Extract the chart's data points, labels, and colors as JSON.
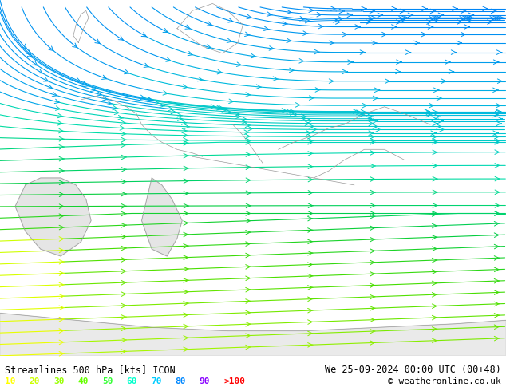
{
  "title_left": "Streamlines 500 hPa [kts] ICON",
  "title_right": "We 25-09-2024 00:00 UTC (00+48)",
  "copyright": "© weatheronline.co.uk",
  "legend_values": [
    "10",
    "20",
    "30",
    "40",
    "50",
    "60",
    "70",
    "80",
    "90",
    ">100"
  ],
  "legend_colors": [
    "#ffff00",
    "#ccff00",
    "#99ff00",
    "#66ff00",
    "#33ff33",
    "#00ffcc",
    "#00ccff",
    "#0088ff",
    "#8800ff",
    "#ff0000"
  ],
  "bg_color": "#ccff99",
  "bottom_bar_color": "#d8d8d8",
  "figsize": [
    6.34,
    4.9
  ],
  "dpi": 100,
  "speed_colormap": [
    [
      0.0,
      "#ffff00"
    ],
    [
      0.1,
      "#ddff00"
    ],
    [
      0.2,
      "#bbff00"
    ],
    [
      0.3,
      "#88ee00"
    ],
    [
      0.4,
      "#44dd00"
    ],
    [
      0.5,
      "#00cc44"
    ],
    [
      0.6,
      "#00ddaa"
    ],
    [
      0.7,
      "#00bbdd"
    ],
    [
      0.8,
      "#0099ee"
    ],
    [
      1.0,
      "#0066ff"
    ]
  ]
}
